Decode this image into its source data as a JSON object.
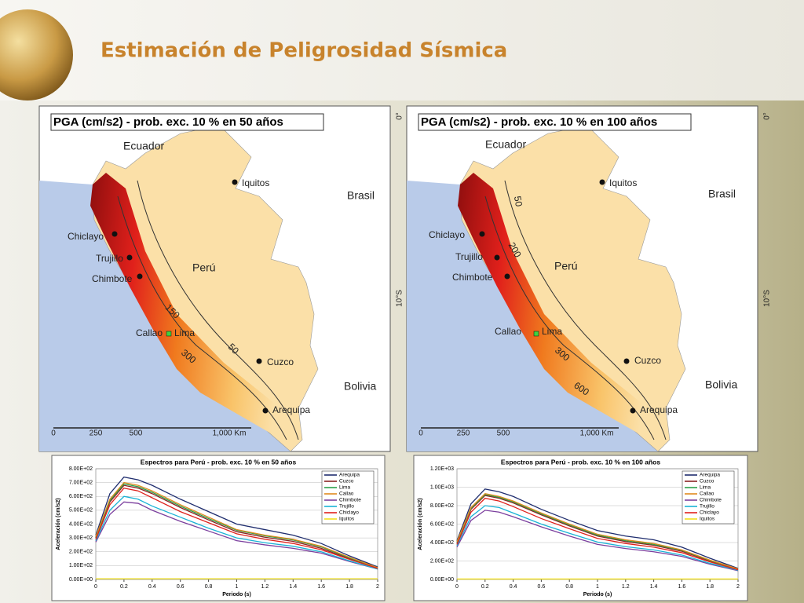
{
  "title": "Estimación de Peligrosidad Sísmica",
  "maps": [
    {
      "title": "PGA (cm/s2) - prob. exc. 10 % en 50 años",
      "countries": [
        "Ecuador",
        "Brasil",
        "Perú",
        "Bolivia"
      ],
      "cities": [
        "Iquitos",
        "Chiclayo",
        "Trujillo",
        "Chimbote",
        "Callao",
        "Lima",
        "Cuzco",
        "Arequipa"
      ],
      "contours": [
        150,
        300,
        50
      ],
      "scale": [
        0,
        250,
        500,
        "1,000 Km"
      ],
      "latitudes": [
        "0°",
        "10°S"
      ]
    },
    {
      "title": "PGA (cm/s2) - prob. exc. 10 % en 100 años",
      "countries": [
        "Ecuador",
        "Brasil",
        "Perú",
        "Bolivia"
      ],
      "cities": [
        "Iquitos",
        "Chiclayo",
        "Trujillo",
        "Chimbote",
        "Callao",
        "Lima",
        "Cuzco",
        "Arequipa"
      ],
      "contours": [
        50,
        200,
        300,
        600
      ],
      "scale": [
        0,
        250,
        500,
        "1,000 Km"
      ],
      "latitudes": [
        "0°",
        "10°S"
      ]
    }
  ],
  "chart_data": [
    {
      "type": "line",
      "title": "Espectros para Perú - prob. exc. 10 % en 50 años",
      "x_label": "Periodo (s)",
      "y_label": "Aceleración (cm/s2)",
      "x": [
        0,
        0.1,
        0.2,
        0.3,
        0.4,
        0.6,
        0.8,
        1.0,
        1.2,
        1.4,
        1.6,
        1.8,
        2.0
      ],
      "xlim": [
        0,
        2
      ],
      "xticks": [
        0,
        0.2,
        0.4,
        0.6,
        0.8,
        1,
        1.2,
        1.4,
        1.6,
        1.8,
        2
      ],
      "ylim": [
        0,
        800
      ],
      "yticks": [
        {
          "value": 0,
          "label": "0.00E+00"
        },
        {
          "value": 100,
          "label": "1.00E+02"
        },
        {
          "value": 200,
          "label": "2.00E+02"
        },
        {
          "value": 300,
          "label": "3.00E+02"
        },
        {
          "value": 400,
          "label": "4.00E+02"
        },
        {
          "value": 500,
          "label": "5.00E+02"
        },
        {
          "value": 600,
          "label": "6.00E+02"
        },
        {
          "value": 700,
          "label": "7.00E+02"
        },
        {
          "value": 800,
          "label": "8.00E+02"
        }
      ],
      "grid": true,
      "legend": "upper right",
      "series": [
        {
          "name": "Arequipa",
          "color": "#1f2d6e",
          "values": [
            320,
            620,
            740,
            720,
            680,
            580,
            490,
            400,
            360,
            320,
            260,
            170,
            90
          ]
        },
        {
          "name": "Cuzco",
          "color": "#8b2323",
          "values": [
            300,
            560,
            680,
            660,
            620,
            520,
            430,
            345,
            305,
            275,
            225,
            150,
            80
          ]
        },
        {
          "name": "Lima",
          "color": "#2aa04a",
          "values": [
            305,
            570,
            690,
            670,
            630,
            530,
            440,
            355,
            315,
            285,
            235,
            155,
            85
          ]
        },
        {
          "name": "Callao",
          "color": "#e08a1e",
          "values": [
            310,
            580,
            700,
            680,
            640,
            540,
            450,
            360,
            320,
            290,
            240,
            160,
            85
          ]
        },
        {
          "name": "Chimbote",
          "color": "#7b3f9e",
          "values": [
            270,
            470,
            560,
            550,
            500,
            420,
            350,
            280,
            250,
            225,
            190,
            130,
            75
          ]
        },
        {
          "name": "Trujillo",
          "color": "#19b3d6",
          "values": [
            280,
            500,
            600,
            580,
            530,
            450,
            370,
            300,
            265,
            240,
            200,
            135,
            75
          ]
        },
        {
          "name": "Chiclayo",
          "color": "#e0201b",
          "values": [
            290,
            540,
            660,
            640,
            590,
            490,
            410,
            330,
            290,
            260,
            215,
            145,
            80
          ]
        },
        {
          "name": "Iquitos",
          "color": "#f2e01e",
          "values": [
            5,
            5,
            5,
            5,
            5,
            5,
            5,
            5,
            5,
            5,
            5,
            5,
            5
          ]
        }
      ]
    },
    {
      "type": "line",
      "title": "Espectros para Perú - prob. exc. 10 % en 100 años",
      "x_label": "Periodo (s)",
      "y_label": "Aceleración (cm/s2)",
      "x": [
        0,
        0.1,
        0.2,
        0.3,
        0.4,
        0.6,
        0.8,
        1.0,
        1.2,
        1.4,
        1.6,
        1.8,
        2.0
      ],
      "xlim": [
        0,
        2
      ],
      "xticks": [
        0,
        0.2,
        0.4,
        0.6,
        0.8,
        1,
        1.2,
        1.4,
        1.6,
        1.8,
        2
      ],
      "ylim": [
        0,
        1200
      ],
      "yticks": [
        {
          "value": 0,
          "label": "0.00E+00"
        },
        {
          "value": 200,
          "label": "2.00E+02"
        },
        {
          "value": 400,
          "label": "4.00E+02"
        },
        {
          "value": 600,
          "label": "6.00E+02"
        },
        {
          "value": 800,
          "label": "8.00E+02"
        },
        {
          "value": 1000,
          "label": "1.00E+03"
        },
        {
          "value": 1200,
          "label": "1.20E+03"
        }
      ],
      "grid": true,
      "legend": "upper right",
      "series": [
        {
          "name": "Arequipa",
          "color": "#1f2d6e",
          "values": [
            420,
            820,
            980,
            950,
            900,
            760,
            640,
            530,
            470,
            430,
            350,
            230,
            120
          ]
        },
        {
          "name": "Cuzco",
          "color": "#8b2323",
          "values": [
            395,
            760,
            910,
            880,
            830,
            700,
            580,
            470,
            410,
            370,
            305,
            200,
            108
          ]
        },
        {
          "name": "Lima",
          "color": "#2aa04a",
          "values": [
            400,
            770,
            920,
            890,
            840,
            710,
            590,
            480,
            420,
            380,
            315,
            205,
            110
          ]
        },
        {
          "name": "Callao",
          "color": "#e08a1e",
          "values": [
            410,
            780,
            930,
            900,
            850,
            720,
            600,
            490,
            430,
            390,
            320,
            210,
            115
          ]
        },
        {
          "name": "Chimbote",
          "color": "#7b3f9e",
          "values": [
            350,
            640,
            750,
            730,
            680,
            570,
            470,
            380,
            335,
            300,
            250,
            165,
            95
          ]
        },
        {
          "name": "Trujillo",
          "color": "#19b3d6",
          "values": [
            365,
            680,
            800,
            780,
            720,
            600,
            500,
            405,
            355,
            320,
            265,
            175,
            100
          ]
        },
        {
          "name": "Chiclayo",
          "color": "#e0201b",
          "values": [
            380,
            730,
            880,
            850,
            790,
            660,
            550,
            445,
            390,
            350,
            290,
            190,
            105
          ]
        },
        {
          "name": "Iquitos",
          "color": "#f2e01e",
          "values": [
            5,
            5,
            5,
            5,
            5,
            5,
            5,
            5,
            5,
            5,
            5,
            5,
            5
          ]
        }
      ]
    }
  ]
}
